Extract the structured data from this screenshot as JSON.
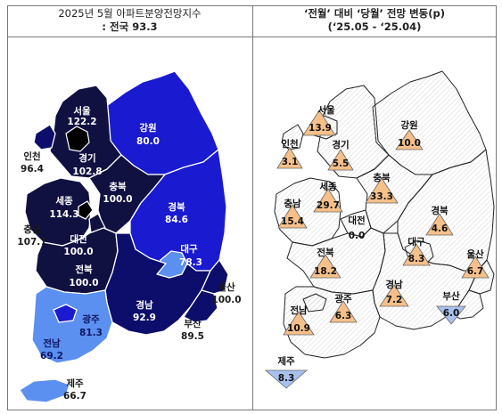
{
  "left_title": {
    "line1": "2025년  5월  아파트분양전망지수",
    "line2": ": 전국  93.3"
  },
  "right_title": {
    "line1": "‘전월’  대비  ‘당월’  전망  변동(p)",
    "line2": "(‘25.05    -   ‘25.04)"
  },
  "left_regions": [
    {
      "name": "서울",
      "value": "122.2"
    },
    {
      "name": "인천",
      "value": "96.4"
    },
    {
      "name": "경기",
      "value": "102.8"
    },
    {
      "name": "강원",
      "value": "80.0"
    },
    {
      "name": "충북",
      "value": "100.0"
    },
    {
      "name": "세종",
      "value": "114.3"
    },
    {
      "name": "충남",
      "value": "107.7"
    },
    {
      "name": "대전",
      "value": "100.0"
    },
    {
      "name": "경북",
      "value": "84.6"
    },
    {
      "name": "대구",
      "value": "78.3"
    },
    {
      "name": "전북",
      "value": "100.0"
    },
    {
      "name": "울산",
      "value": "100.0"
    },
    {
      "name": "경남",
      "value": "92.9"
    },
    {
      "name": "광주",
      "value": "81.3"
    },
    {
      "name": "부산",
      "value": "89.5"
    },
    {
      "name": "전남",
      "value": "69.2"
    },
    {
      "name": "제주",
      "value": "66.7"
    }
  ],
  "right_regions": [
    {
      "name": "서울",
      "value": "13.9",
      "dir": "up"
    },
    {
      "name": "인천",
      "value": "3.1",
      "dir": "up"
    },
    {
      "name": "경기",
      "value": "5.5",
      "dir": "up"
    },
    {
      "name": "강원",
      "value": "10.0",
      "dir": "up"
    },
    {
      "name": "충북",
      "value": "33.3",
      "dir": "up"
    },
    {
      "name": "세종",
      "value": "29.7",
      "dir": "up"
    },
    {
      "name": "충남",
      "value": "15.4",
      "dir": "up"
    },
    {
      "name": "대전",
      "value": "0.0",
      "dir": "none"
    },
    {
      "name": "경북",
      "value": "4.6",
      "dir": "up"
    },
    {
      "name": "대구",
      "value": "8.3",
      "dir": "up"
    },
    {
      "name": "울산",
      "value": "6.7",
      "dir": "up"
    },
    {
      "name": "전북",
      "value": "18.2",
      "dir": "up"
    },
    {
      "name": "경남",
      "value": "7.2",
      "dir": "up"
    },
    {
      "name": "광주",
      "value": "6.3",
      "dir": "up"
    },
    {
      "name": "부산",
      "value": "6.0",
      "dir": "down"
    },
    {
      "name": "전남",
      "value": "10.9",
      "dir": "up"
    },
    {
      "name": "제주",
      "value": "8.3",
      "dir": "down"
    }
  ],
  "colors": {
    "very_dark": "#101041",
    "dark_navy": "#0d0d6b",
    "blue": "#1a1ad0",
    "light_blue": "#5b8ff0",
    "up_triangle": "#f6c08a",
    "down_triangle": "#a9c1ee"
  }
}
